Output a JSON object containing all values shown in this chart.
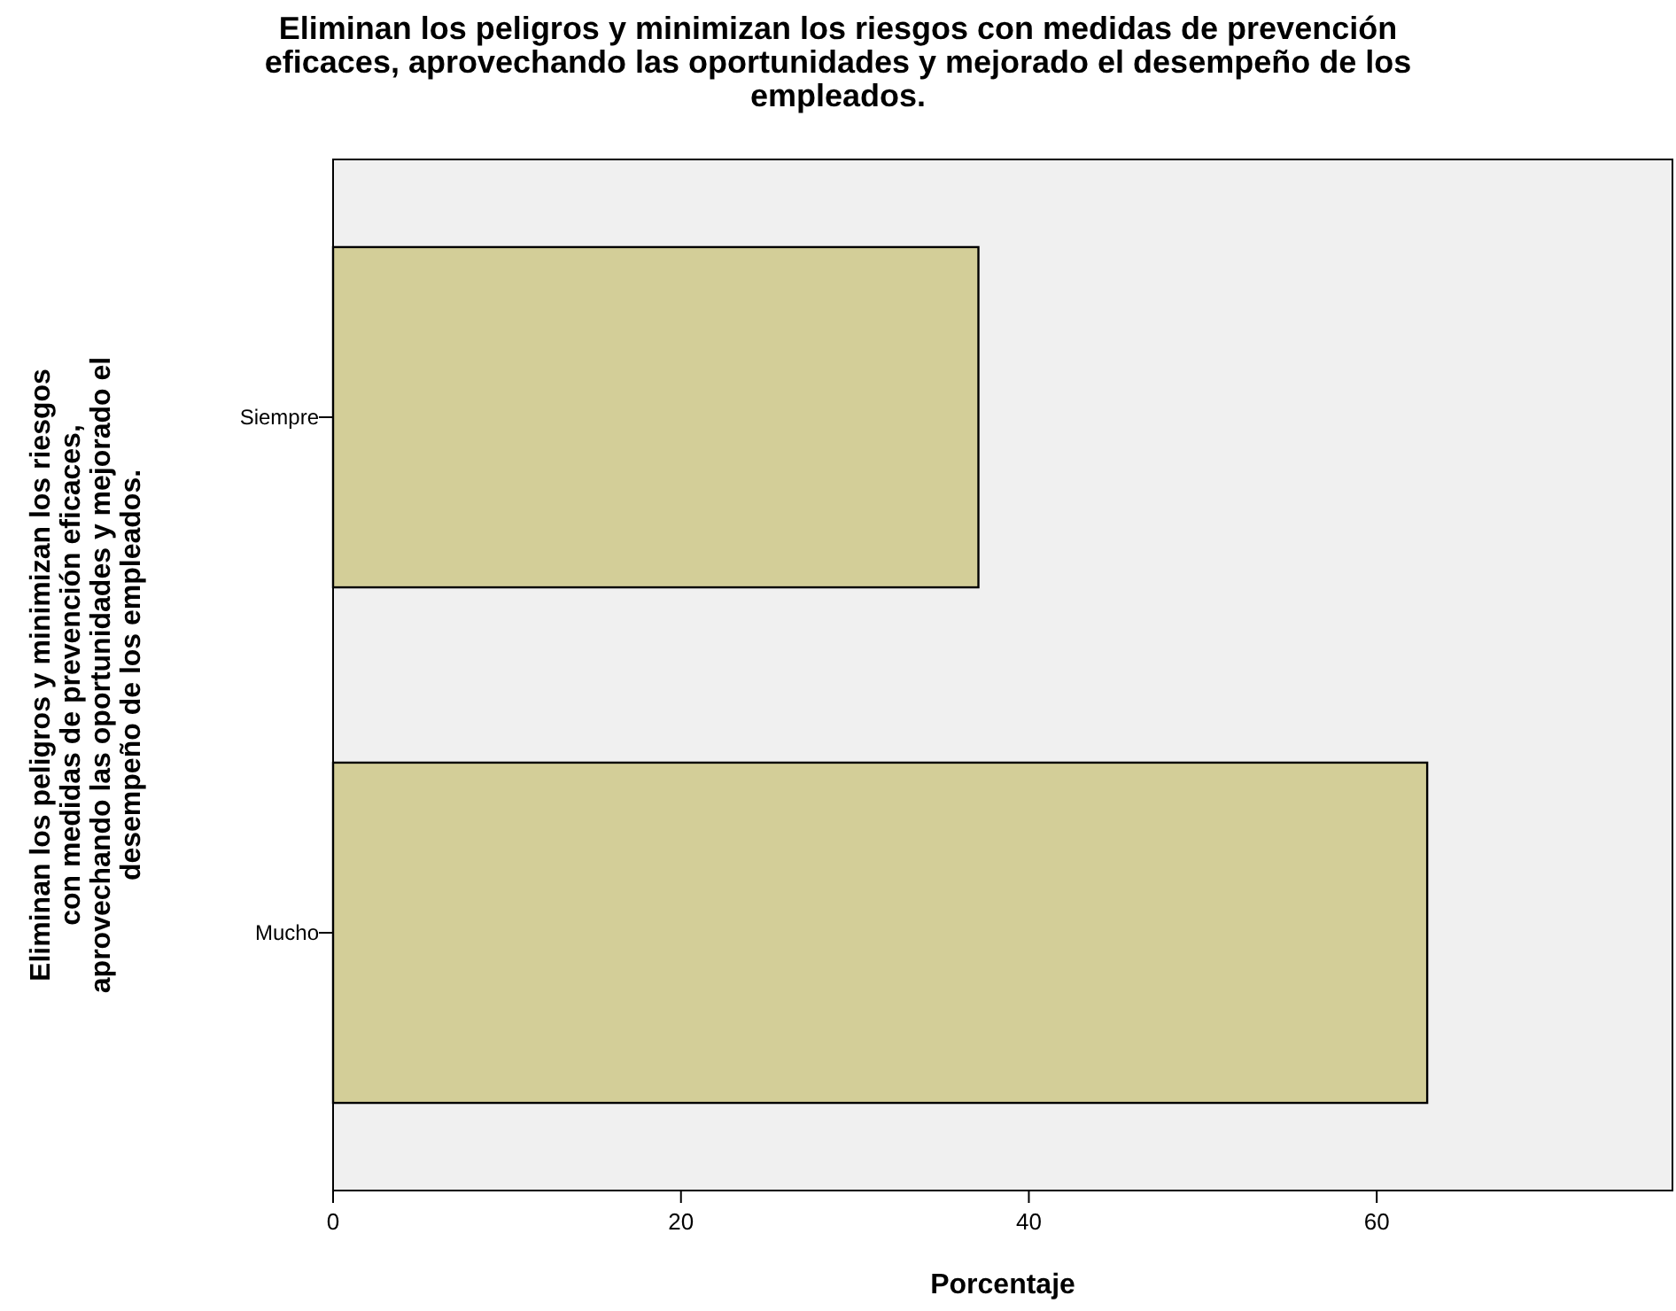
{
  "chart_data": {
    "type": "bar",
    "orientation": "horizontal",
    "title": "Eliminan los peligros y minimizan los riesgos con medidas de prevención eficaces, aprovechando las oportunidades y mejorado el desempeño de los empleados.",
    "xlabel": "Porcentaje",
    "ylabel": "Eliminan los peligros y minimizan los riesgos con medidas de prevención eficaces, aprovechando las oportunidades y mejorado el desempeño de los empleados.",
    "categories": [
      "Siempre",
      "Mucho"
    ],
    "values": [
      37.1,
      62.9
    ],
    "color": "#d3ce98",
    "xlim": [
      0,
      77
    ],
    "xticks": [
      0,
      20,
      40,
      60
    ]
  }
}
